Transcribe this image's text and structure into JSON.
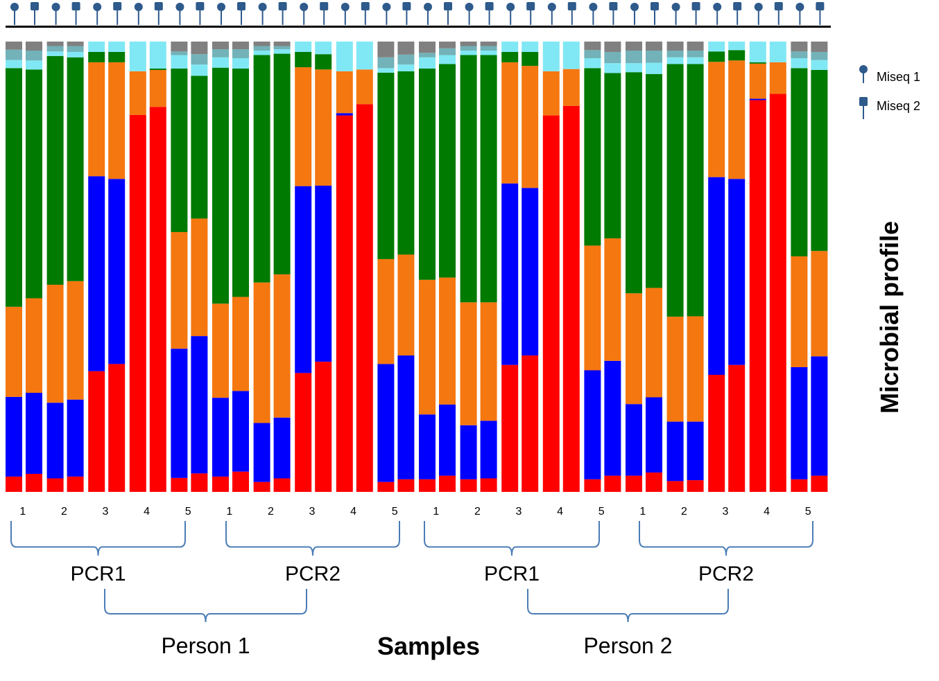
{
  "chart_data": {
    "type": "bar",
    "stacked": true,
    "normalized": true,
    "title": "",
    "xlabel": "Samples",
    "ylabel": "Microbial profile",
    "ylim": [
      0,
      1
    ],
    "grid": false,
    "legend": {
      "placement": "right",
      "entries": [
        {
          "name": "Miseq 1",
          "marker": "circle-pin"
        },
        {
          "name": "Miseq 2",
          "marker": "square-pin"
        }
      ]
    },
    "colors": {
      "red": "#ff0000",
      "blue": "#0000ff",
      "orange": "#f57710",
      "green": "#007a00",
      "cyan": "#80e8f4",
      "teal": "#72b2b8",
      "gray": "#808080",
      "marker": "#2e5a8c",
      "bracket": "#4a7cb5"
    },
    "tick_labels": [
      "1",
      "2",
      "3",
      "4",
      "5",
      "1",
      "2",
      "3",
      "4",
      "5",
      "1",
      "2",
      "3",
      "4",
      "5",
      "1",
      "2",
      "3",
      "4",
      "5"
    ],
    "pcr_labels": [
      "PCR1",
      "PCR2",
      "PCR1",
      "PCR2"
    ],
    "person_labels": [
      "Person 1",
      "Person 2"
    ],
    "bars": [
      {
        "machine": "Miseq 1",
        "segments": [
          0.034,
          0.177,
          0.2,
          0.53,
          0.018,
          0.023,
          0.018
        ]
      },
      {
        "machine": "Miseq 2",
        "segments": [
          0.04,
          0.18,
          0.21,
          0.508,
          0.02,
          0.022,
          0.02
        ]
      },
      {
        "machine": "Miseq 1",
        "segments": [
          0.03,
          0.168,
          0.262,
          0.508,
          0.01,
          0.012,
          0.01
        ]
      },
      {
        "machine": "Miseq 2",
        "segments": [
          0.034,
          0.171,
          0.263,
          0.497,
          0.012,
          0.013,
          0.01
        ]
      },
      {
        "machine": "Miseq 1",
        "segments": [
          0.268,
          0.433,
          0.253,
          0.023,
          0.023,
          0,
          0
        ]
      },
      {
        "machine": "Miseq 2",
        "segments": [
          0.284,
          0.411,
          0.259,
          0.023,
          0.023,
          0,
          0
        ]
      },
      {
        "machine": "Miseq 1",
        "segments": [
          0.837,
          0,
          0.097,
          0,
          0.066,
          0,
          0
        ]
      },
      {
        "machine": "Miseq 2",
        "segments": [
          0.855,
          0,
          0.082,
          0.003,
          0.06,
          0,
          0
        ]
      },
      {
        "machine": "Miseq 1",
        "segments": [
          0.031,
          0.287,
          0.259,
          0.363,
          0.03,
          0.008,
          0.022
        ]
      },
      {
        "machine": "Miseq 2",
        "segments": [
          0.041,
          0.305,
          0.261,
          0.317,
          0.025,
          0.023,
          0.028
        ]
      },
      {
        "machine": "Miseq 1",
        "segments": [
          0.034,
          0.175,
          0.209,
          0.524,
          0.023,
          0.018,
          0.017
        ]
      },
      {
        "machine": "Miseq 2",
        "segments": [
          0.045,
          0.179,
          0.209,
          0.507,
          0.023,
          0.02,
          0.017
        ]
      },
      {
        "machine": "Miseq 1",
        "segments": [
          0.022,
          0.131,
          0.312,
          0.505,
          0.01,
          0.01,
          0.01
        ]
      },
      {
        "machine": "Miseq 2",
        "segments": [
          0.03,
          0.135,
          0.318,
          0.49,
          0.01,
          0.007,
          0.01
        ]
      },
      {
        "machine": "Miseq 1",
        "segments": [
          0.264,
          0.415,
          0.264,
          0.034,
          0.023,
          0,
          0
        ]
      },
      {
        "machine": "Miseq 2",
        "segments": [
          0.289,
          0.391,
          0.258,
          0.034,
          0.028,
          0,
          0
        ]
      },
      {
        "machine": "Miseq 1",
        "segments": [
          0.836,
          0.005,
          0.093,
          0,
          0.066,
          0,
          0
        ]
      },
      {
        "machine": "Miseq 2",
        "segments": [
          0.861,
          0,
          0.077,
          0,
          0.062,
          0,
          0
        ]
      },
      {
        "machine": "Miseq 1",
        "segments": [
          0.022,
          0.262,
          0.233,
          0.414,
          0.01,
          0.024,
          0.035
        ]
      },
      {
        "machine": "Miseq 2",
        "segments": [
          0.028,
          0.275,
          0.224,
          0.407,
          0.015,
          0.022,
          0.029
        ]
      },
      {
        "machine": "Miseq 1",
        "segments": [
          0.028,
          0.144,
          0.299,
          0.469,
          0.025,
          0.01,
          0.025
        ]
      },
      {
        "machine": "Miseq 2",
        "segments": [
          0.036,
          0.158,
          0.282,
          0.474,
          0.02,
          0.015,
          0.015
        ]
      },
      {
        "machine": "Miseq 1",
        "segments": [
          0.028,
          0.12,
          0.273,
          0.549,
          0.01,
          0.01,
          0.01
        ]
      },
      {
        "machine": "Miseq 2",
        "segments": [
          0.03,
          0.128,
          0.263,
          0.549,
          0.01,
          0.01,
          0.01
        ]
      },
      {
        "machine": "Miseq 1",
        "segments": [
          0.282,
          0.403,
          0.269,
          0.023,
          0.023,
          0,
          0
        ]
      },
      {
        "machine": "Miseq 2",
        "segments": [
          0.303,
          0.372,
          0.271,
          0.031,
          0.023,
          0,
          0
        ]
      },
      {
        "machine": "Miseq 1",
        "segments": [
          0.836,
          0,
          0.098,
          0,
          0.066,
          0,
          0
        ]
      },
      {
        "machine": "Miseq 2",
        "segments": [
          0.857,
          0,
          0.082,
          0,
          0.061,
          0,
          0
        ]
      },
      {
        "machine": "Miseq 1",
        "segments": [
          0.028,
          0.242,
          0.277,
          0.394,
          0.022,
          0.018,
          0.019
        ]
      },
      {
        "machine": "Miseq 2",
        "segments": [
          0.036,
          0.255,
          0.272,
          0.367,
          0.022,
          0.025,
          0.023
        ]
      },
      {
        "machine": "Miseq 1",
        "segments": [
          0.036,
          0.159,
          0.246,
          0.491,
          0.02,
          0.028,
          0.02
        ]
      },
      {
        "machine": "Miseq 2",
        "segments": [
          0.043,
          0.167,
          0.243,
          0.475,
          0.025,
          0.027,
          0.02
        ]
      },
      {
        "machine": "Miseq 1",
        "segments": [
          0.024,
          0.132,
          0.233,
          0.561,
          0.015,
          0.015,
          0.02
        ]
      },
      {
        "machine": "Miseq 2",
        "segments": [
          0.026,
          0.13,
          0.234,
          0.56,
          0.015,
          0.015,
          0.02
        ]
      },
      {
        "machine": "Miseq 1",
        "segments": [
          0.26,
          0.439,
          0.256,
          0.023,
          0.022,
          0,
          0
        ]
      },
      {
        "machine": "Miseq 2",
        "segments": [
          0.282,
          0.413,
          0.263,
          0.023,
          0.019,
          0,
          0
        ]
      },
      {
        "machine": "Miseq 1",
        "segments": [
          0.87,
          0.003,
          0.078,
          0.003,
          0.046,
          0,
          0
        ]
      },
      {
        "machine": "Miseq 2",
        "segments": [
          0.884,
          0,
          0.07,
          0,
          0.046,
          0,
          0
        ]
      },
      {
        "machine": "Miseq 1",
        "segments": [
          0.028,
          0.249,
          0.246,
          0.418,
          0.022,
          0.015,
          0.022
        ]
      },
      {
        "machine": "Miseq 2",
        "segments": [
          0.036,
          0.265,
          0.234,
          0.402,
          0.022,
          0.018,
          0.023
        ]
      }
    ]
  }
}
